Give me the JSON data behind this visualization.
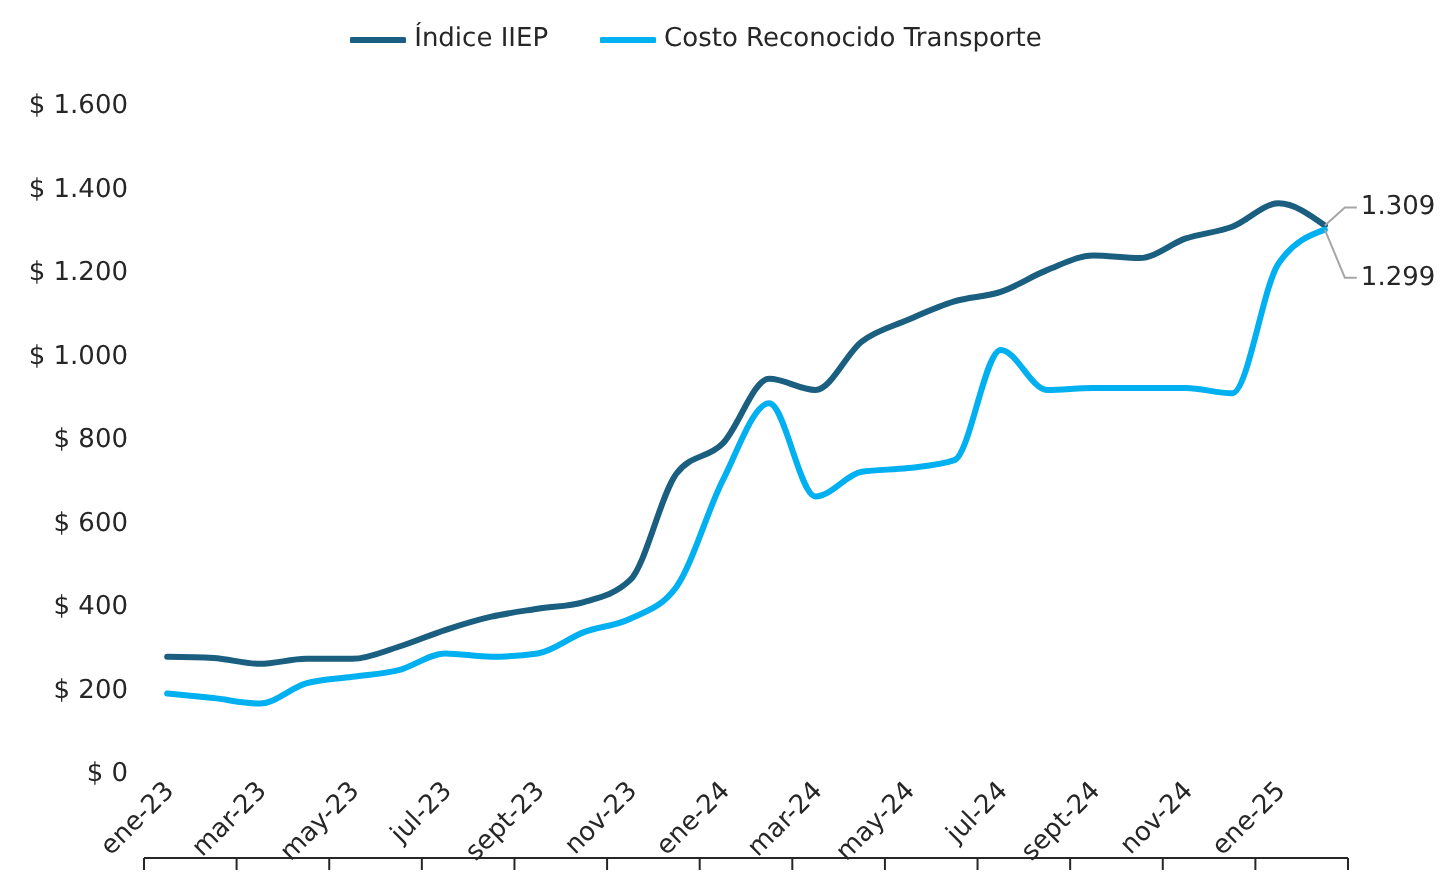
{
  "chart_data": {
    "type": "line",
    "categories": [
      "ene-23",
      null,
      "mar-23",
      null,
      "may-23",
      null,
      "jul-23",
      null,
      "sept-23",
      null,
      "nov-23",
      null,
      "ene-24",
      null,
      "mar-24",
      null,
      "may-24",
      null,
      "jul-24",
      null,
      "sept-24",
      null,
      "nov-24",
      null,
      "ene-25",
      null
    ],
    "series": [
      {
        "name": "Índice IIEP",
        "color": "#1a5f80",
        "values": [
          276,
          273,
          259,
          271,
          271,
          300,
          340,
          372,
          391,
          407,
          460,
          715,
          787,
          942,
          915,
          1031,
          1083,
          1127,
          1150,
          1202,
          1237,
          1231,
          1278,
          1306,
          1362,
          1309
        ],
        "value_labels": [
          null,
          null,
          null,
          null,
          null,
          null,
          null,
          null,
          null,
          null,
          null,
          null,
          null,
          null,
          null,
          null,
          null,
          null,
          null,
          null,
          null,
          null,
          null,
          null,
          null,
          "1.309"
        ]
      },
      {
        "name": "Costo Reconocido Transporte",
        "color": "#00b0f0",
        "values": [
          188,
          177,
          164,
          212,
          228,
          244,
          284,
          276,
          284,
          335,
          367,
          444,
          699,
          883,
          660,
          719,
          728,
          747,
          1011,
          915,
          920,
          920,
          920,
          907,
          1218,
          1299
        ],
        "value_labels": [
          null,
          null,
          null,
          null,
          null,
          null,
          null,
          null,
          null,
          null,
          null,
          null,
          null,
          null,
          null,
          null,
          null,
          null,
          null,
          null,
          null,
          null,
          null,
          null,
          null,
          "1.299"
        ]
      }
    ],
    "ylim": [
      0,
      1600
    ],
    "yticks": [
      {
        "value": 0,
        "label": "$ 0"
      },
      {
        "value": 200,
        "label": "$ 200"
      },
      {
        "value": 400,
        "label": "$ 400"
      },
      {
        "value": 600,
        "label": "$ 600"
      },
      {
        "value": 800,
        "label": "$ 800"
      },
      {
        "value": 1000,
        "label": "$ 1.000"
      },
      {
        "value": 1200,
        "label": "$ 1.200"
      },
      {
        "value": 1400,
        "label": "$ 1.400"
      },
      {
        "value": 1600,
        "label": "$ 1.600"
      }
    ],
    "grid": false,
    "legend": "top",
    "marker": "none",
    "line_style": "solid"
  }
}
